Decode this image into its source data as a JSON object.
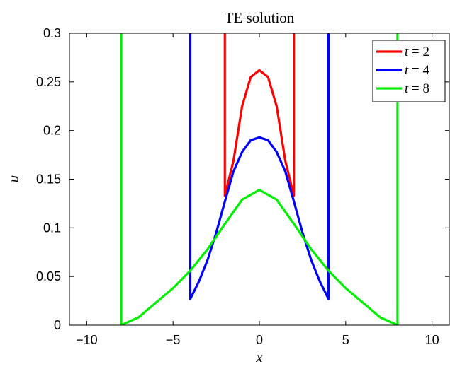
{
  "chart_data": {
    "type": "line",
    "title": "TE solution",
    "xlabel": "x",
    "ylabel": "u",
    "xlim": [
      -11,
      11
    ],
    "ylim": [
      0,
      0.3
    ],
    "xticks": [
      -10,
      -5,
      0,
      5,
      10
    ],
    "xtick_labels": [
      "−10",
      "−5",
      "0",
      "5",
      "10"
    ],
    "yticks": [
      0,
      0.05,
      0.1,
      0.15,
      0.2,
      0.25,
      0.3
    ],
    "ytick_labels": [
      "0",
      "0.05",
      "0.1",
      "0.15",
      "0.2",
      "0.25",
      "0.3"
    ],
    "grid": false,
    "legend_position": "top-right",
    "series": [
      {
        "name": "t = 2",
        "name_var": "t",
        "name_value": "= 2",
        "color": "#ff0000",
        "x": [
          -2,
          -2,
          -1.5,
          -1,
          -0.5,
          0,
          0.5,
          1,
          1.5,
          2,
          2
        ],
        "y": [
          0.3,
          0.133,
          0.169,
          0.225,
          0.255,
          0.262,
          0.255,
          0.225,
          0.169,
          0.133,
          0.3
        ]
      },
      {
        "name": "t = 4",
        "name_var": "t",
        "name_value": "= 4",
        "color": "#0000ff",
        "x": [
          -4,
          -4,
          -3.5,
          -3,
          -2.5,
          -2,
          -1.5,
          -1,
          -0.5,
          0,
          0.5,
          1,
          1.5,
          2,
          2.5,
          3,
          3.5,
          4,
          4
        ],
        "y": [
          0.3,
          0.027,
          0.045,
          0.067,
          0.095,
          0.127,
          0.158,
          0.178,
          0.19,
          0.193,
          0.19,
          0.178,
          0.158,
          0.127,
          0.095,
          0.067,
          0.045,
          0.027,
          0.3
        ]
      },
      {
        "name": "t = 8",
        "name_var": "t",
        "name_value": "= 8",
        "color": "#00ee00",
        "x": [
          -8,
          -8,
          -7,
          -6,
          -5,
          -4,
          -3,
          -2,
          -1,
          0,
          1,
          2,
          3,
          4,
          5,
          6,
          7,
          8,
          8
        ],
        "y": [
          0.3,
          0.0,
          0.008,
          0.023,
          0.038,
          0.056,
          0.078,
          0.104,
          0.129,
          0.139,
          0.129,
          0.104,
          0.078,
          0.056,
          0.038,
          0.023,
          0.008,
          0.0,
          0.3
        ]
      }
    ]
  }
}
